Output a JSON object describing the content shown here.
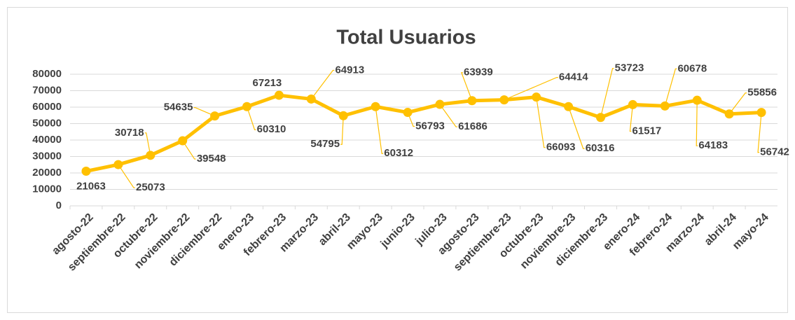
{
  "chart_data": {
    "type": "line",
    "title": "Total Usuarios",
    "categories": [
      "agosto-22",
      "septiembre-22",
      "octubre-22",
      "noviembre-22",
      "diciembre-22",
      "enero-23",
      "febrero-23",
      "marzo-23",
      "abril-23",
      "mayo-23",
      "junio-23",
      "julio-23",
      "agosto-23",
      "septiembre-23",
      "octubre-23",
      "noviembre-23",
      "diciembre-23",
      "enero-24",
      "febrero-24",
      "marzo-24",
      "abril-24",
      "mayo-24"
    ],
    "series": [
      {
        "name": "Total Usuarios",
        "color": "#ffc000",
        "values": [
          21063,
          25073,
          30718,
          39548,
          54635,
          60310,
          67213,
          64913,
          54795,
          60312,
          56793,
          61686,
          63939,
          64414,
          66093,
          60316,
          53723,
          61517,
          60678,
          64183,
          55856,
          56742
        ]
      }
    ],
    "ylim": [
      0,
      80000
    ],
    "yticks": [
      0,
      10000,
      20000,
      30000,
      40000,
      50000,
      60000,
      70000,
      80000
    ],
    "grid": true
  }
}
